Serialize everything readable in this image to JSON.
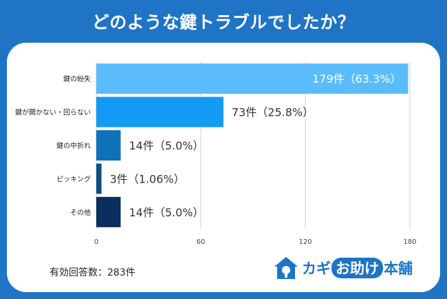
{
  "title": "どのような鍵トラブルでしたか？",
  "footer": {
    "total": "有効回答数：283件"
  },
  "logo": {
    "brand_a": "カギ",
    "brand_b": "お助け",
    "brand_c": "本舗"
  },
  "colors": {
    "background": "#1f74c5"
  },
  "chart_data": {
    "type": "bar",
    "orientation": "horizontal",
    "categories": [
      "鍵の紛失",
      "鍵が開かない・回らない",
      "鍵の中折れ",
      "ピッキング",
      "その他"
    ],
    "values": [
      179,
      73,
      14,
      3,
      14
    ],
    "data_labels": [
      "179件（63.3%）",
      "73件（25.8%）",
      "14件（5.0%）",
      "3件（1.06%）",
      "14件（5.0%）"
    ],
    "colors": [
      "#5bbcfc",
      "#139af2",
      "#0f72b9",
      "#0d4f80",
      "#09305c"
    ],
    "xticks": [
      "0",
      "60",
      "120",
      "180"
    ],
    "xlim": [
      0,
      180
    ],
    "grid": true
  }
}
